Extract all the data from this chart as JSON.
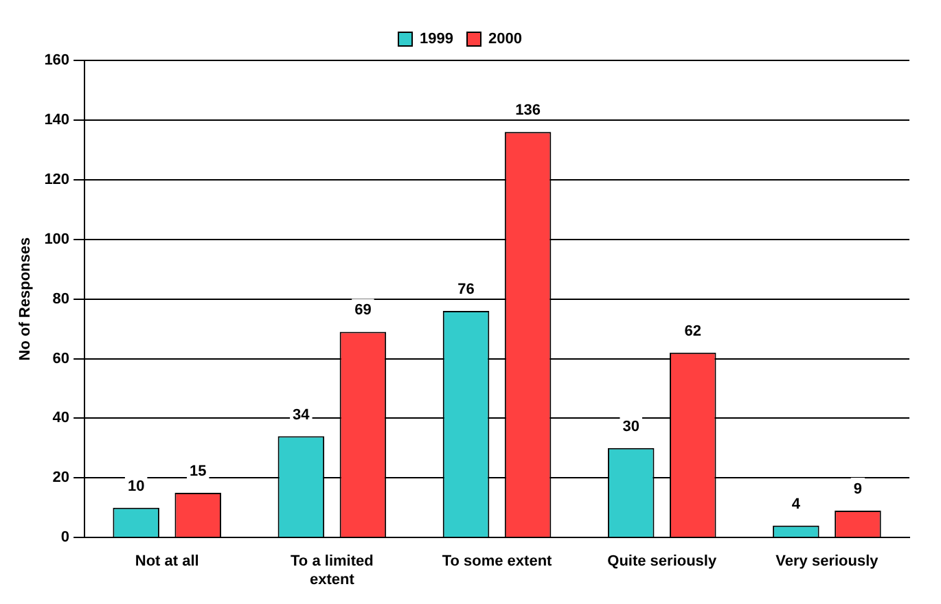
{
  "chart_data": {
    "type": "bar",
    "ylabel": "No of Responses",
    "categories": [
      "Not at all",
      "To a limited extent",
      "To some extent",
      "Quite seriously",
      "Very seriously"
    ],
    "series": [
      {
        "name": "1999",
        "color": "#33cccc",
        "values": [
          10,
          34,
          76,
          30,
          4
        ]
      },
      {
        "name": "2000",
        "color": "#ff4040",
        "values": [
          15,
          69,
          136,
          62,
          9
        ]
      }
    ],
    "ylim": [
      0,
      160
    ],
    "yticks": [
      0,
      20,
      40,
      60,
      80,
      100,
      120,
      140,
      160
    ],
    "grid": "y",
    "legend": "top",
    "data_labels": true
  }
}
